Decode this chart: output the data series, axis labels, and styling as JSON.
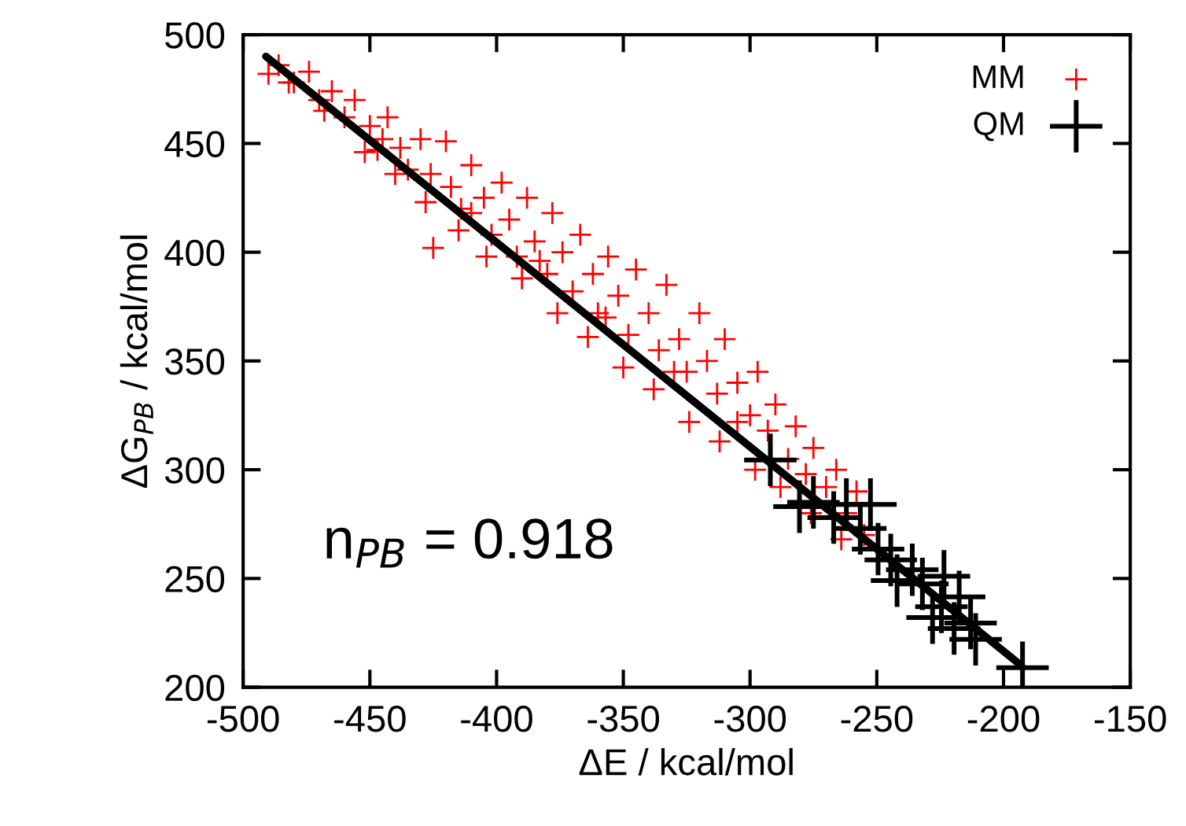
{
  "chart_data": {
    "type": "scatter",
    "xlabel": "ΔE / kcal/mol",
    "ylabel": "ΔG$_{PB}$ / kcal/mol",
    "annotations": [
      "n$_{PB}$ = 0.918"
    ],
    "xlim": [
      -500,
      -150
    ],
    "xticks": [
      -500,
      -450,
      -400,
      -350,
      -300,
      -250,
      -200,
      -150
    ],
    "ylim": [
      200,
      500
    ],
    "yticks": [
      200,
      250,
      300,
      350,
      400,
      450,
      500
    ],
    "grid": false,
    "legend": "top right",
    "marker": "cross",
    "series": [
      {
        "name": "MM",
        "color": "#ff0000",
        "x": [
          -490,
          -486,
          -480,
          -474,
          -470,
          -465,
          -460,
          -456,
          -450,
          -447,
          -443,
          -438,
          -435,
          -430,
          -426,
          -425,
          -420,
          -418,
          -414,
          -410,
          -405,
          -402,
          -398,
          -395,
          -392,
          -388,
          -385,
          -380,
          -378,
          -374,
          -370,
          -367,
          -362,
          -360,
          -356,
          -352,
          -348,
          -345,
          -340,
          -336,
          -333,
          -328,
          -325,
          -320,
          -317,
          -313,
          -310,
          -305,
          -300,
          -297,
          -293,
          -290,
          -285,
          -282,
          -278,
          -275,
          -270,
          -266,
          -262,
          -258,
          -255,
          -482,
          -468,
          -452,
          -440,
          -428,
          -415,
          -404,
          -390,
          -376,
          -364,
          -350,
          -338,
          -324,
          -312,
          -298,
          -288,
          -276,
          -264,
          -445,
          -410,
          -383,
          -357,
          -330,
          -305
        ],
        "values": [
          482,
          486,
          478,
          483,
          470,
          474,
          462,
          470,
          458,
          447,
          462,
          448,
          438,
          452,
          436,
          402,
          451,
          430,
          420,
          440,
          425,
          408,
          432,
          415,
          398,
          425,
          405,
          390,
          418,
          400,
          382,
          408,
          390,
          372,
          398,
          380,
          362,
          392,
          372,
          355,
          385,
          360,
          345,
          372,
          350,
          335,
          360,
          340,
          325,
          345,
          318,
          330,
          305,
          320,
          298,
          310,
          292,
          300,
          280,
          290,
          270,
          478,
          465,
          446,
          436,
          423,
          410,
          398,
          388,
          372,
          361,
          347,
          337,
          322,
          313,
          300,
          292,
          280,
          268,
          452,
          418,
          396,
          370,
          345,
          322
        ]
      },
      {
        "name": "QM",
        "color": "#000000",
        "x": [
          -292,
          -280.5,
          -275,
          -267,
          -262,
          -252.5,
          -256.5,
          -249.5,
          -244.5,
          -242,
          -236,
          -232,
          -223.5,
          -224.5,
          -217.5,
          -219.5,
          -213,
          -211,
          -228,
          -192.5
        ],
        "values": [
          304.5,
          283,
          285,
          278,
          284,
          284,
          273,
          263.5,
          258.5,
          249,
          254,
          247.5,
          251,
          237,
          241.5,
          227,
          229.5,
          222,
          232,
          209
        ]
      },
      {
        "type": "line",
        "color": "#000000",
        "marker": "none",
        "x": [
          -491,
          -193
        ],
        "values": [
          490,
          210
        ]
      }
    ]
  }
}
